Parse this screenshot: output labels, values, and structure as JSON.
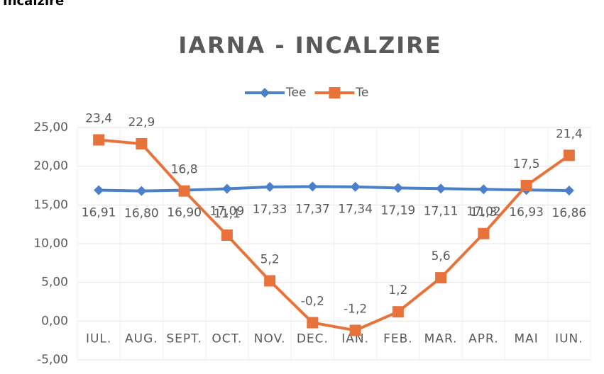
{
  "heading": "Incalzire",
  "chart_data": {
    "type": "line",
    "title": "IARNA - INCALZIRE",
    "categories": [
      "IUL.",
      "AUG.",
      "SEPT.",
      "OCT.",
      "NOV.",
      "DEC.",
      "IAN.",
      "FEB.",
      "MAR.",
      "APR.",
      "MAI",
      "IUN."
    ],
    "series": [
      {
        "name": "Tee",
        "color": "#4a7fc9",
        "marker": "diamond",
        "values": [
          16.91,
          16.8,
          16.9,
          17.09,
          17.33,
          17.37,
          17.34,
          17.19,
          17.11,
          17.02,
          16.93,
          16.86
        ],
        "value_labels": [
          "16,91",
          "16,80",
          "16,90",
          "17,09",
          "17,33",
          "17,37",
          "17,34",
          "17,19",
          "17,11",
          "17,02",
          "16,93",
          "16,86"
        ],
        "label_position": "below"
      },
      {
        "name": "Te",
        "color": "#e8733a",
        "marker": "square",
        "values": [
          23.4,
          22.9,
          16.8,
          11.1,
          5.2,
          -0.2,
          -1.2,
          1.2,
          5.6,
          11.3,
          17.5,
          21.4
        ],
        "value_labels": [
          "23,4",
          "22,9",
          "16,8",
          "11,1",
          "5,2",
          "-0,2",
          "-1,2",
          "1,2",
          "5,6",
          "11,3",
          "17,5",
          "21,4"
        ],
        "label_position": "above"
      }
    ],
    "ylim": [
      -5,
      25
    ],
    "yticks": [
      {
        "value": -5,
        "label": "-5,00"
      },
      {
        "value": 0,
        "label": "0,00"
      },
      {
        "value": 5,
        "label": "5,00"
      },
      {
        "value": 10,
        "label": "10,00"
      },
      {
        "value": 15,
        "label": "15,00"
      },
      {
        "value": 20,
        "label": "20,00"
      },
      {
        "value": 25,
        "label": "25,00"
      }
    ],
    "grid": true,
    "legend": "top"
  }
}
